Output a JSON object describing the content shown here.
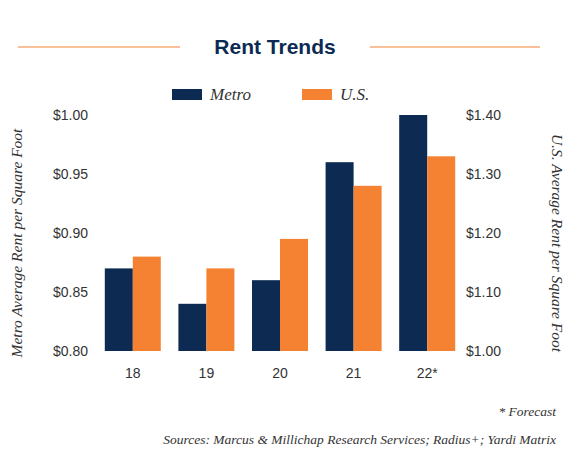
{
  "chart_data": {
    "type": "bar",
    "title": "Rent Trends",
    "ylabel": "Metro Average Rent per Square Foot",
    "y2label": "U.S. Average Rent per Square Foot",
    "categories": [
      "18",
      "19",
      "20",
      "21",
      "22*"
    ],
    "series": [
      {
        "name": "Metro",
        "color": "#0c2a52",
        "values": [
          0.87,
          0.84,
          0.86,
          0.96,
          1.0
        ]
      },
      {
        "name": "U.S.",
        "color": "#f58232",
        "axis": "y2",
        "values": [
          1.16,
          1.14,
          1.19,
          1.28,
          1.33
        ]
      }
    ],
    "ylim": [
      0.8,
      1.0
    ],
    "yticks": [
      {
        "value": 0.8,
        "label": "$0.80"
      },
      {
        "value": 0.85,
        "label": "$0.85"
      },
      {
        "value": 0.9,
        "label": "$0.90"
      },
      {
        "value": 0.95,
        "label": "$0.95"
      },
      {
        "value": 1.0,
        "label": "$1.00"
      }
    ],
    "y2lim": [
      1.0,
      1.4
    ],
    "y2ticks": [
      {
        "value": 1.0,
        "label": "$1.00"
      },
      {
        "value": 1.1,
        "label": "$1.10"
      },
      {
        "value": 1.2,
        "label": "$1.20"
      },
      {
        "value": 1.3,
        "label": "$1.30"
      },
      {
        "value": 1.4,
        "label": "$1.40"
      }
    ],
    "grid": false,
    "legend": "top",
    "annotations": [
      "* Forecast",
      "Sources: Marcus & Millichap Research Services; Radius+; Yardi Matrix"
    ]
  }
}
